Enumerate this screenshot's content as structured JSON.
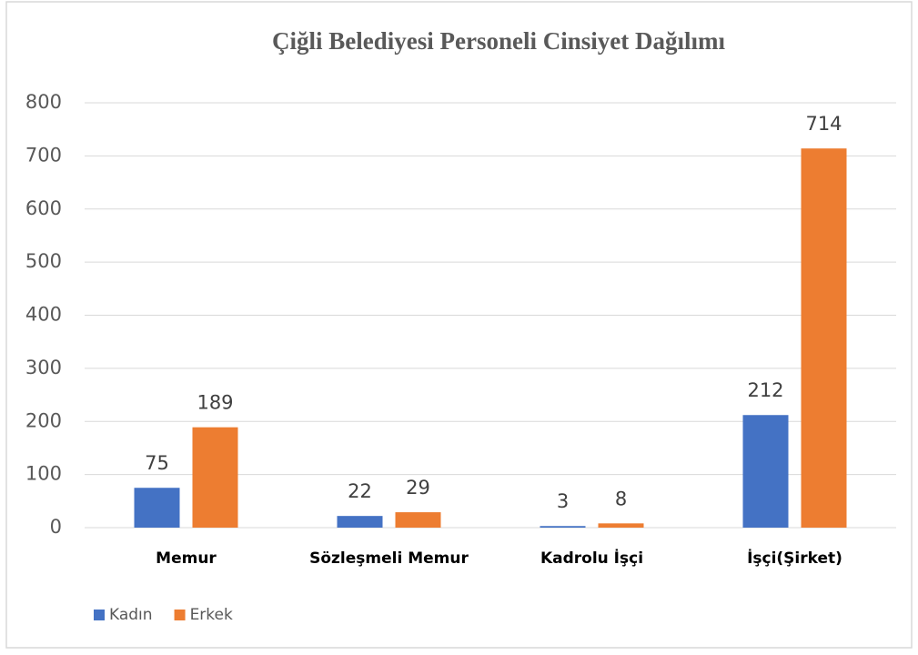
{
  "chart_data": {
    "type": "bar",
    "title": "Çiğli Belediyesi Personeli Cinsiyet Dağılımı",
    "categories": [
      "Memur",
      "Sözleşmeli Memur",
      "Kadrolu İşçi",
      "İşçi(Şirket)"
    ],
    "series": [
      {
        "name": "Kadın",
        "color": "#4472c4",
        "values": [
          75,
          22,
          3,
          212
        ]
      },
      {
        "name": "Erkek",
        "color": "#ed7d31",
        "values": [
          189,
          29,
          8,
          714
        ]
      }
    ],
    "ylim": [
      0,
      800
    ],
    "yticks": [
      0,
      100,
      200,
      300,
      400,
      500,
      600,
      700,
      800
    ],
    "grid": true,
    "legend": "bottom-left",
    "data_labels": true
  }
}
